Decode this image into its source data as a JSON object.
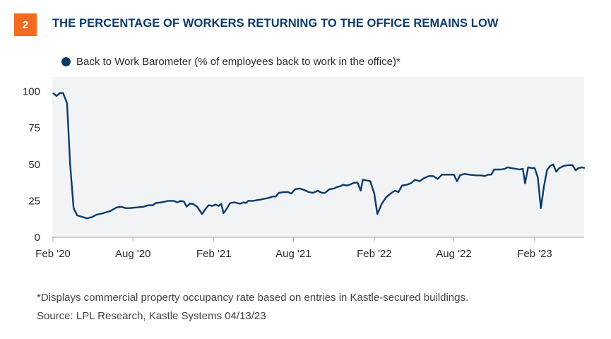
{
  "header": {
    "number": "2",
    "title": "THE PERCENTAGE OF WORKERS RETURNING TO THE OFFICE REMAINS LOW"
  },
  "colors": {
    "accent": "#f26b21",
    "title": "#0b3a6a",
    "series": "#0b3a6a",
    "plot_bg": "#f2f3f5"
  },
  "footer": {
    "note": "*Displays commercial property occupancy rate based on entries in Kastle-secured buildings.",
    "source": "Source: LPL Research, Kastle Systems  04/13/23"
  },
  "chart_data": {
    "type": "line",
    "title": "THE PERCENTAGE OF WORKERS RETURNING TO THE OFFICE REMAINS LOW",
    "xlabel": "",
    "ylabel": "",
    "ylim": [
      0,
      110
    ],
    "xlim": [
      "2020-02-01",
      "2023-06-01"
    ],
    "yticks": [
      0,
      25,
      50,
      75,
      100
    ],
    "xticks": [
      {
        "date": "2020-02-01",
        "label": "Feb '20"
      },
      {
        "date": "2020-08-01",
        "label": "Aug '20"
      },
      {
        "date": "2021-02-01",
        "label": "Feb '21"
      },
      {
        "date": "2021-08-01",
        "label": "Aug '21"
      },
      {
        "date": "2022-02-01",
        "label": "Feb '22"
      },
      {
        "date": "2022-08-01",
        "label": "Aug '22"
      },
      {
        "date": "2023-02-01",
        "label": "Feb '23"
      }
    ],
    "legend": "top-left",
    "grid": false,
    "series": [
      {
        "name": "Back to Work Barometer (% of employees back to work in the office)*",
        "points": [
          [
            "2020-02-01",
            99
          ],
          [
            "2020-02-09",
            97
          ],
          [
            "2020-02-17",
            99
          ],
          [
            "2020-02-24",
            99
          ],
          [
            "2020-03-04",
            92
          ],
          [
            "2020-03-11",
            50
          ],
          [
            "2020-03-19",
            20
          ],
          [
            "2020-03-27",
            15
          ],
          [
            "2020-04-08",
            14
          ],
          [
            "2020-04-18",
            13
          ],
          [
            "2020-05-01",
            14
          ],
          [
            "2020-05-10",
            15.5
          ],
          [
            "2020-05-25",
            16.5
          ],
          [
            "2020-06-10",
            18
          ],
          [
            "2020-06-25",
            20.5
          ],
          [
            "2020-07-05",
            21
          ],
          [
            "2020-07-15",
            20
          ],
          [
            "2020-07-25",
            20
          ],
          [
            "2020-08-10",
            20.5
          ],
          [
            "2020-08-25",
            21
          ],
          [
            "2020-09-05",
            22
          ],
          [
            "2020-09-15",
            22
          ],
          [
            "2020-09-22",
            23.5
          ],
          [
            "2020-10-05",
            24
          ],
          [
            "2020-10-20",
            25
          ],
          [
            "2020-11-01",
            25
          ],
          [
            "2020-11-10",
            24
          ],
          [
            "2020-11-18",
            25
          ],
          [
            "2020-11-25",
            24.5
          ],
          [
            "2020-12-01",
            21
          ],
          [
            "2020-12-08",
            23
          ],
          [
            "2020-12-15",
            23
          ],
          [
            "2020-12-25",
            21
          ],
          [
            "2021-01-05",
            16
          ],
          [
            "2021-01-12",
            19
          ],
          [
            "2021-01-20",
            22
          ],
          [
            "2021-01-28",
            21.5
          ],
          [
            "2021-02-05",
            22.5
          ],
          [
            "2021-02-12",
            21.5
          ],
          [
            "2021-02-18",
            23
          ],
          [
            "2021-02-23",
            16.5
          ],
          [
            "2021-03-01",
            19
          ],
          [
            "2021-03-10",
            23.5
          ],
          [
            "2021-03-20",
            24
          ],
          [
            "2021-04-01",
            23
          ],
          [
            "2021-04-10",
            24
          ],
          [
            "2021-04-15",
            23.5
          ],
          [
            "2021-04-20",
            25
          ],
          [
            "2021-05-01",
            25
          ],
          [
            "2021-05-20",
            26
          ],
          [
            "2021-06-05",
            27
          ],
          [
            "2021-06-15",
            28
          ],
          [
            "2021-06-22",
            28
          ],
          [
            "2021-06-29",
            30.5
          ],
          [
            "2021-07-10",
            31
          ],
          [
            "2021-07-20",
            31
          ],
          [
            "2021-07-27",
            30
          ],
          [
            "2021-08-05",
            33
          ],
          [
            "2021-08-15",
            33.5
          ],
          [
            "2021-08-25",
            32.5
          ],
          [
            "2021-09-05",
            31
          ],
          [
            "2021-09-15",
            30.5
          ],
          [
            "2021-09-25",
            32
          ],
          [
            "2021-10-05",
            30.5
          ],
          [
            "2021-10-12",
            30.5
          ],
          [
            "2021-10-22",
            33
          ],
          [
            "2021-11-01",
            33.5
          ],
          [
            "2021-11-08",
            34.5
          ],
          [
            "2021-11-15",
            35
          ],
          [
            "2021-11-22",
            36
          ],
          [
            "2021-12-01",
            35.5
          ],
          [
            "2021-12-10",
            36.5
          ],
          [
            "2021-12-18",
            37.5
          ],
          [
            "2021-12-25",
            37.5
          ],
          [
            "2022-01-01",
            32
          ],
          [
            "2022-01-06",
            39.5
          ],
          [
            "2022-01-15",
            39
          ],
          [
            "2022-01-23",
            38.5
          ],
          [
            "2022-02-01",
            30
          ],
          [
            "2022-02-08",
            16
          ],
          [
            "2022-02-18",
            23
          ],
          [
            "2022-02-28",
            27.5
          ],
          [
            "2022-03-10",
            30
          ],
          [
            "2022-03-20",
            32
          ],
          [
            "2022-03-28",
            31
          ],
          [
            "2022-04-05",
            35.5
          ],
          [
            "2022-04-15",
            36
          ],
          [
            "2022-04-25",
            37
          ],
          [
            "2022-05-05",
            39.5
          ],
          [
            "2022-05-15",
            38.5
          ],
          [
            "2022-05-25",
            40.5
          ],
          [
            "2022-06-05",
            42
          ],
          [
            "2022-06-15",
            42
          ],
          [
            "2022-06-25",
            40
          ],
          [
            "2022-07-05",
            43
          ],
          [
            "2022-07-20",
            43
          ],
          [
            "2022-08-01",
            43
          ],
          [
            "2022-08-08",
            38.5
          ],
          [
            "2022-08-15",
            42.5
          ],
          [
            "2022-08-25",
            43.5
          ],
          [
            "2022-09-05",
            43
          ],
          [
            "2022-09-20",
            42.5
          ],
          [
            "2022-10-01",
            42.5
          ],
          [
            "2022-10-10",
            42
          ],
          [
            "2022-10-18",
            43
          ],
          [
            "2022-10-25",
            43
          ],
          [
            "2022-11-01",
            46.5
          ],
          [
            "2022-11-15",
            46.5
          ],
          [
            "2022-11-25",
            47
          ],
          [
            "2022-12-01",
            48
          ],
          [
            "2022-12-10",
            47.5
          ],
          [
            "2022-12-20",
            47
          ],
          [
            "2022-12-28",
            46.5
          ],
          [
            "2023-01-05",
            47
          ],
          [
            "2023-01-10",
            37
          ],
          [
            "2023-01-17",
            48
          ],
          [
            "2023-01-25",
            47.5
          ],
          [
            "2023-02-01",
            47.5
          ],
          [
            "2023-02-08",
            41
          ],
          [
            "2023-02-15",
            20
          ],
          [
            "2023-02-22",
            35
          ],
          [
            "2023-03-01",
            46
          ],
          [
            "2023-03-08",
            49
          ],
          [
            "2023-03-15",
            50
          ],
          [
            "2023-03-22",
            45
          ],
          [
            "2023-03-29",
            47.5
          ],
          [
            "2023-04-08",
            49
          ],
          [
            "2023-04-18",
            49.5
          ],
          [
            "2023-04-28",
            49.5
          ],
          [
            "2023-05-05",
            46
          ],
          [
            "2023-05-12",
            47.5
          ],
          [
            "2023-05-19",
            48
          ],
          [
            "2023-05-26",
            47.5
          ]
        ]
      }
    ]
  }
}
